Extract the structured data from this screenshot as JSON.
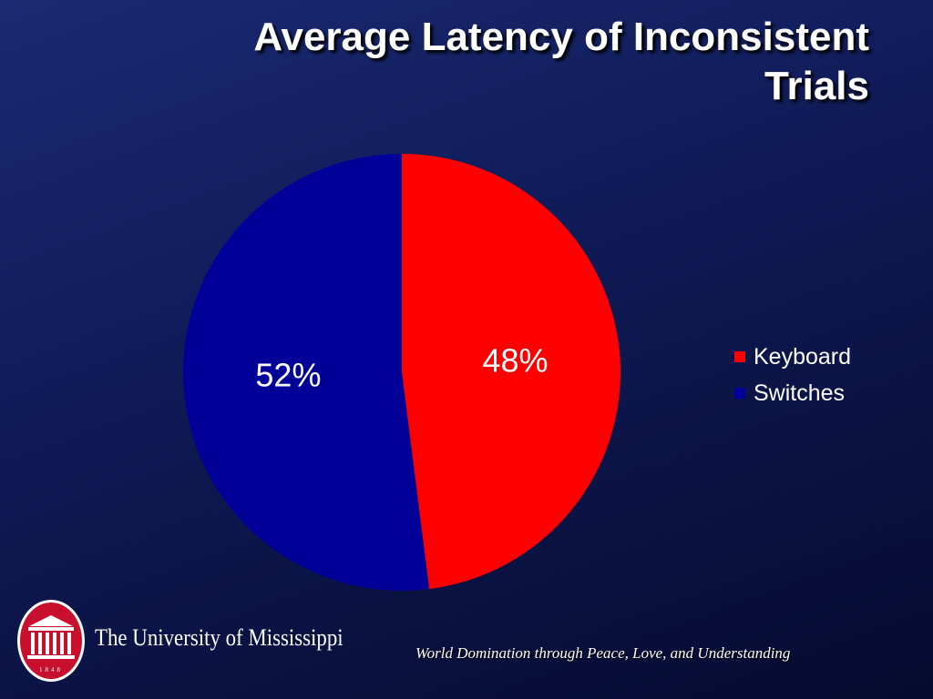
{
  "slide": {
    "title_line1": "Average Latency of Inconsistent",
    "title_line2": "Trials",
    "background_color": "#0f1a55"
  },
  "chart_data": {
    "type": "pie",
    "categories": [
      "Keyboard",
      "Switches"
    ],
    "values": [
      48,
      52
    ],
    "value_labels": [
      "48%",
      "52%"
    ],
    "colors": [
      "#ff0000",
      "#000099"
    ],
    "start_angle_deg": 0,
    "direction": "clockwise",
    "legend_position": "right"
  },
  "legend": {
    "items": [
      {
        "label": "Keyboard",
        "color": "#ff0000"
      },
      {
        "label": "Switches",
        "color": "#000099"
      }
    ]
  },
  "footer": {
    "university_name": "The University of Mississippi",
    "logo_year": "1848",
    "logo_icon": "lyceum-columns-icon",
    "logo_color": "#c8102e",
    "motto": "World Domination through Peace, Love, and Understanding"
  }
}
